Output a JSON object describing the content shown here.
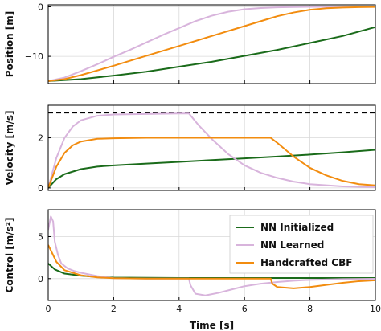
{
  "chart_data": [
    {
      "type": "line",
      "ylabel": "Position [m]",
      "xlim": [
        0,
        10
      ],
      "ylim": [
        -15.5,
        0.4
      ],
      "yticks": [
        0,
        -10
      ],
      "ytick_labels": [
        "0",
        "−10"
      ],
      "series": [
        {
          "name": "NN Initialized",
          "color": "#1a6b1a",
          "x": [
            0,
            1,
            2,
            3,
            4,
            5,
            6,
            7,
            8,
            9,
            10
          ],
          "y": [
            -15,
            -14.6,
            -13.9,
            -13.1,
            -12.1,
            -11.1,
            -9.9,
            -8.7,
            -7.3,
            -5.9,
            -4.1
          ]
        },
        {
          "name": "NN Learned",
          "color": "#d8b4dc",
          "x": [
            0,
            0.5,
            1,
            1.5,
            2,
            2.5,
            3,
            3.5,
            4,
            4.5,
            5,
            5.5,
            6,
            6.5,
            7,
            7.5,
            8,
            10
          ],
          "y": [
            -15,
            -14.3,
            -13,
            -11.6,
            -10.1,
            -8.7,
            -7.2,
            -5.7,
            -4.3,
            -2.9,
            -1.8,
            -1.0,
            -0.5,
            -0.25,
            -0.1,
            -0.05,
            0,
            0
          ]
        },
        {
          "name": "Handcrafted CBF",
          "color": "#f28c0f",
          "x": [
            0,
            0.5,
            1,
            2,
            3,
            4,
            5,
            6,
            6.8,
            7,
            7.5,
            8,
            8.5,
            9,
            9.5,
            10
          ],
          "y": [
            -15,
            -14.6,
            -13.8,
            -11.9,
            -9.9,
            -7.9,
            -5.9,
            -3.9,
            -2.3,
            -1.9,
            -1.15,
            -0.6,
            -0.3,
            -0.15,
            -0.06,
            -0.02
          ]
        }
      ]
    },
    {
      "type": "line",
      "ylabel": "Velocity [m/s]",
      "xlim": [
        0,
        10
      ],
      "ylim": [
        -0.1,
        3.3
      ],
      "yticks": [
        0,
        2
      ],
      "ytick_labels": [
        "0",
        "2"
      ],
      "reference": {
        "y": 3,
        "color": "#000000",
        "dashed": true
      },
      "series": [
        {
          "name": "NN Initialized",
          "color": "#1a6b1a",
          "x": [
            0,
            0.25,
            0.5,
            1,
            1.5,
            2,
            3,
            4,
            5,
            6,
            7,
            8,
            9,
            10
          ],
          "y": [
            0,
            0.35,
            0.55,
            0.75,
            0.85,
            0.9,
            0.97,
            1.04,
            1.11,
            1.18,
            1.25,
            1.33,
            1.42,
            1.52
          ]
        },
        {
          "name": "NN Learned",
          "color": "#d8b4dc",
          "x": [
            0,
            0.25,
            0.5,
            0.75,
            1,
            1.5,
            2,
            3,
            4,
            4.3,
            4.6,
            5,
            5.5,
            6,
            6.5,
            7,
            7.5,
            8,
            9,
            10
          ],
          "y": [
            0,
            1.2,
            2.0,
            2.45,
            2.7,
            2.88,
            2.93,
            2.95,
            2.97,
            2.97,
            2.5,
            1.95,
            1.35,
            0.9,
            0.6,
            0.4,
            0.25,
            0.15,
            0.06,
            0.03
          ]
        },
        {
          "name": "Handcrafted CBF",
          "color": "#f28c0f",
          "x": [
            0,
            0.25,
            0.5,
            0.75,
            1,
            1.5,
            2,
            3,
            4,
            5,
            6,
            6.8,
            7,
            7.5,
            8,
            8.5,
            9,
            9.5,
            10
          ],
          "y": [
            0,
            0.85,
            1.4,
            1.7,
            1.85,
            1.96,
            1.98,
            2.0,
            2.0,
            2.0,
            2.0,
            2.0,
            1.8,
            1.25,
            0.8,
            0.5,
            0.28,
            0.15,
            0.1
          ]
        }
      ]
    },
    {
      "type": "line",
      "ylabel": "Control [m/s²]",
      "xlabel": "Time [s]",
      "xlim": [
        0,
        10
      ],
      "ylim": [
        -2.6,
        8.2
      ],
      "yticks": [
        5,
        0
      ],
      "ytick_labels": [
        "5",
        "0"
      ],
      "xticks": [
        0,
        2,
        4,
        6,
        8,
        10
      ],
      "xtick_labels": [
        "0",
        "2",
        "4",
        "6",
        "8",
        "10"
      ],
      "legend": {
        "position": "top-right"
      },
      "series": [
        {
          "name": "NN Initialized",
          "color": "#1a6b1a",
          "x": [
            0,
            0.2,
            0.5,
            1,
            1.5,
            2,
            3,
            4,
            6,
            8,
            10
          ],
          "y": [
            1.8,
            1.1,
            0.6,
            0.35,
            0.2,
            0.12,
            0.1,
            0.08,
            0.07,
            0.07,
            0.07
          ]
        },
        {
          "name": "NN Learned",
          "color": "#d8b4dc",
          "x": [
            0,
            0.08,
            0.15,
            0.2,
            0.3,
            0.4,
            0.6,
            0.8,
            1,
            1.5,
            2,
            3,
            4.3,
            4.35,
            4.5,
            4.8,
            5.2,
            5.6,
            6,
            6.5,
            7,
            7.5,
            8,
            9,
            10
          ],
          "y": [
            5.8,
            7.4,
            6.8,
            4.4,
            2.8,
            1.8,
            1.2,
            0.9,
            0.7,
            0.3,
            0.05,
            0.0,
            0.0,
            -0.8,
            -1.8,
            -2.0,
            -1.7,
            -1.3,
            -0.9,
            -0.6,
            -0.4,
            -0.25,
            -0.15,
            -0.05,
            -0.02
          ]
        },
        {
          "name": "Handcrafted CBF",
          "color": "#f28c0f",
          "x": [
            0,
            0.1,
            0.25,
            0.5,
            1,
            1.5,
            2,
            3,
            4,
            5,
            6,
            6.8,
            6.85,
            7,
            7.5,
            8,
            8.5,
            9,
            9.5,
            10
          ],
          "y": [
            4.0,
            3.2,
            2.0,
            1.0,
            0.4,
            0.15,
            0.05,
            0.0,
            0.0,
            0.0,
            0.0,
            0.0,
            -0.6,
            -1.0,
            -1.15,
            -1.0,
            -0.75,
            -0.5,
            -0.3,
            -0.2
          ]
        }
      ]
    }
  ]
}
